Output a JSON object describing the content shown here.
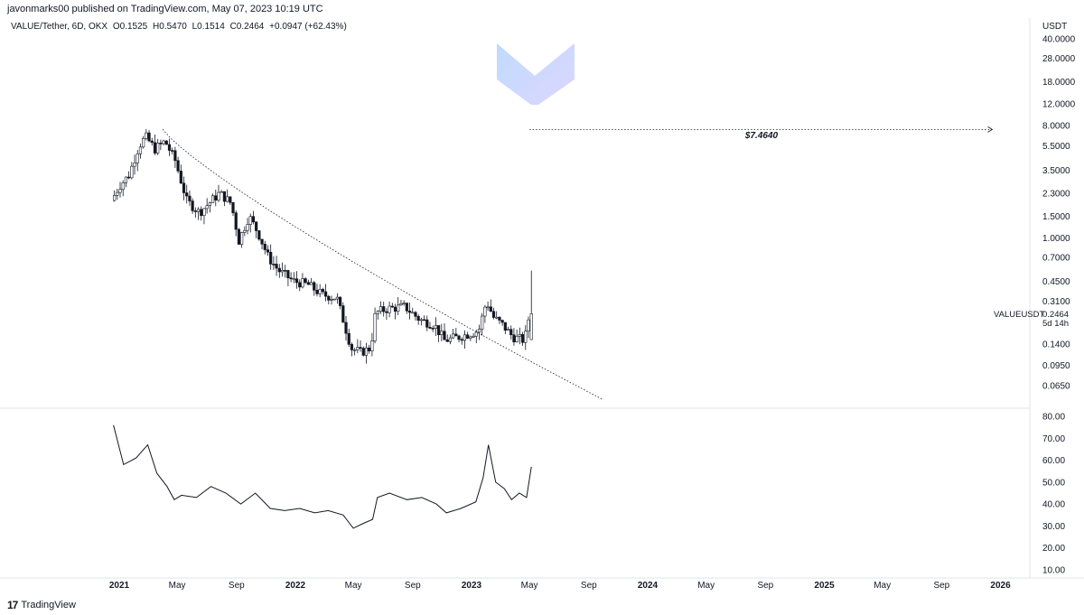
{
  "header": {
    "published": "javonmarks00 published on TradingView.com, May 07, 2023 10:19 UTC"
  },
  "legend": {
    "symbol": "VALUE/Tether, 6D, OKX",
    "open": "O0.1525",
    "high": "H0.5470",
    "low": "L0.1514",
    "close": "C0.2464",
    "change": "+0.0947 (+62.43%)"
  },
  "unit": "USDT",
  "annotation": "$7.4640",
  "last_price": {
    "symbol": "VALUEUSDT",
    "value": "0.2464",
    "countdown": "5d 14h"
  },
  "footer": {
    "brand": "TradingView",
    "mark": "17"
  },
  "colors": {
    "price_line": "#131722",
    "grid": "none",
    "logo_gradient_start": "#c7d2fe",
    "logo_gradient_end": "#ddd6fe"
  },
  "chart_data": [
    {
      "type": "candlestick",
      "title": "VALUE/Tether, 6D, OKX",
      "y_scale": "log",
      "y_ticks": [
        "40.0000",
        "28.0000",
        "18.0000",
        "12.0000",
        "8.0000",
        "5.5000",
        "3.5000",
        "2.3000",
        "1.5000",
        "1.0000",
        "0.7000",
        "0.4500",
        "0.3100",
        "0.2464",
        "0.1400",
        "0.0950",
        "0.0650"
      ],
      "x_ticks": [
        "2021",
        "May",
        "Sep",
        "2022",
        "May",
        "Sep",
        "2023",
        "May",
        "Sep",
        "2024",
        "May",
        "Sep",
        "2025",
        "May",
        "Sep",
        "2026"
      ],
      "price_path": [
        [
          "2020-12-20",
          2.0
        ],
        [
          "2021-01-05",
          2.6
        ],
        [
          "2021-01-25",
          3.2
        ],
        [
          "2021-02-15",
          5.5
        ],
        [
          "2021-03-01",
          6.5
        ],
        [
          "2021-03-20",
          5.2
        ],
        [
          "2021-04-10",
          6.0
        ],
        [
          "2021-05-01",
          4.2
        ],
        [
          "2021-05-25",
          2.0
        ],
        [
          "2021-06-20",
          1.6
        ],
        [
          "2021-07-10",
          1.9
        ],
        [
          "2021-08-01",
          2.3
        ],
        [
          "2021-08-25",
          1.9
        ],
        [
          "2021-09-10",
          0.95
        ],
        [
          "2021-10-01",
          1.5
        ],
        [
          "2021-10-20",
          1.1
        ],
        [
          "2021-11-10",
          0.7
        ],
        [
          "2021-12-01",
          0.55
        ],
        [
          "2022-01-01",
          0.45
        ],
        [
          "2022-02-01",
          0.42
        ],
        [
          "2022-03-01",
          0.35
        ],
        [
          "2022-04-01",
          0.33
        ],
        [
          "2022-05-01",
          0.13
        ],
        [
          "2022-05-20",
          0.12
        ],
        [
          "2022-06-10",
          0.13
        ],
        [
          "2022-06-20",
          0.25
        ],
        [
          "2022-07-15",
          0.27
        ],
        [
          "2022-08-20",
          0.28
        ],
        [
          "2022-09-20",
          0.22
        ],
        [
          "2022-10-20",
          0.2
        ],
        [
          "2022-11-10",
          0.15
        ],
        [
          "2022-12-10",
          0.16
        ],
        [
          "2023-01-01",
          0.17
        ],
        [
          "2023-01-20",
          0.18
        ],
        [
          "2023-02-05",
          0.31
        ],
        [
          "2023-02-20",
          0.23
        ],
        [
          "2023-03-10",
          0.2
        ],
        [
          "2023-04-01",
          0.16
        ],
        [
          "2023-04-25",
          0.15
        ],
        [
          "2023-05-05",
          0.2464
        ]
      ],
      "trendline": {
        "style": "dotted",
        "from": [
          "2021-04-01",
          7.5
        ],
        "to": [
          "2023-10-01",
          0.05
        ]
      },
      "target_line": {
        "style": "dotted",
        "value": 7.464,
        "from": "2023-05-01",
        "to": "2025-12-15",
        "label": "$7.4640"
      }
    },
    {
      "type": "line",
      "y_ticks": [
        "80.00",
        "70.00",
        "60.00",
        "50.00",
        "40.00",
        "30.00",
        "20.00",
        "10.00"
      ],
      "ylim": [
        10,
        80
      ],
      "x": [
        "2020-12-20",
        "2021-01-10",
        "2021-02-05",
        "2021-03-01",
        "2021-03-20",
        "2021-04-10",
        "2021-04-25",
        "2021-05-10",
        "2021-06-10",
        "2021-07-10",
        "2021-08-10",
        "2021-09-10",
        "2021-10-10",
        "2021-11-10",
        "2021-12-10",
        "2022-01-10",
        "2022-02-10",
        "2022-03-10",
        "2022-04-10",
        "2022-05-01",
        "2022-05-20",
        "2022-06-10",
        "2022-06-20",
        "2022-07-15",
        "2022-08-20",
        "2022-09-20",
        "2022-10-20",
        "2022-11-10",
        "2022-12-10",
        "2023-01-10",
        "2023-01-25",
        "2023-02-05",
        "2023-02-20",
        "2023-03-10",
        "2023-03-25",
        "2023-04-10",
        "2023-04-25",
        "2023-05-05"
      ],
      "values": [
        76,
        58,
        61,
        67,
        54,
        48,
        42,
        44,
        43,
        48,
        45,
        40,
        45,
        38,
        37,
        38,
        36,
        37,
        35,
        29,
        31,
        33,
        43,
        45,
        42,
        43,
        40,
        36,
        38,
        41,
        52,
        67,
        50,
        47,
        42,
        45,
        43,
        57
      ]
    }
  ]
}
